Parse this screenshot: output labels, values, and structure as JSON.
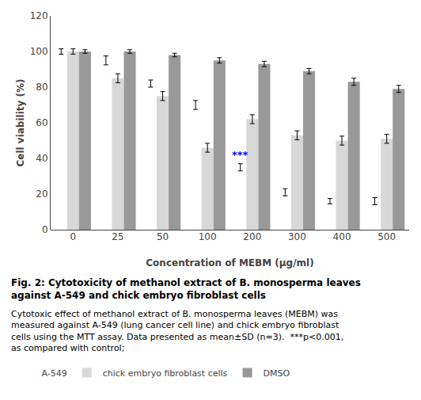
{
  "chart_data": {
    "type": "bar",
    "title": "Fig. 2: Cytotoxicity of methanol extract of B. monosperma leaves against A-549 and chick embryo fibroblast cells",
    "subtitle": "Cytotoxic effect of methanol extract of B. monosperma leaves (MEBM) was measured against A-549 (lung cancer cell line) and chick embryo fibroblast cells using the MTT assay. Data presented as mean±SD (n=3).  ***p<0.001, as compared with control;",
    "xlabel": "Concentration of MEBM (μg/ml)",
    "ylabel": "Cell viability (%)",
    "categories": [
      "0",
      "25",
      "50",
      "100",
      "200",
      "300",
      "400",
      "500"
    ],
    "series": [
      {
        "name": "A-549",
        "color": "#ffffff",
        "values": [
          100,
          95,
          82,
          70,
          35,
          21,
          16,
          16
        ],
        "errors": [
          1.5,
          2.5,
          2.0,
          2.5,
          2.0,
          2.0,
          1.5,
          2.0
        ]
      },
      {
        "name": "chick embryo fibroblast cells",
        "color": "#d8d8d8",
        "values": [
          100,
          85,
          75,
          46,
          62,
          53,
          50,
          51
        ],
        "errors": [
          1.5,
          2.5,
          2.5,
          2.5,
          2.5,
          2.5,
          2.5,
          2.5
        ]
      },
      {
        "name": "DMSO",
        "color": "#999999",
        "values": [
          100,
          100,
          98,
          95,
          93,
          89,
          83,
          79
        ],
        "errors": [
          1.0,
          1.0,
          1.0,
          1.5,
          1.5,
          1.5,
          2.0,
          2.0
        ]
      }
    ],
    "annotations": [
      {
        "text": "***",
        "category": "200",
        "series": "A-549",
        "color": "#0000ff"
      }
    ],
    "ylim": [
      0,
      120
    ],
    "yticks": [
      0,
      20,
      40,
      60,
      80,
      100,
      120
    ],
    "grid": false,
    "legend": "bottom"
  }
}
